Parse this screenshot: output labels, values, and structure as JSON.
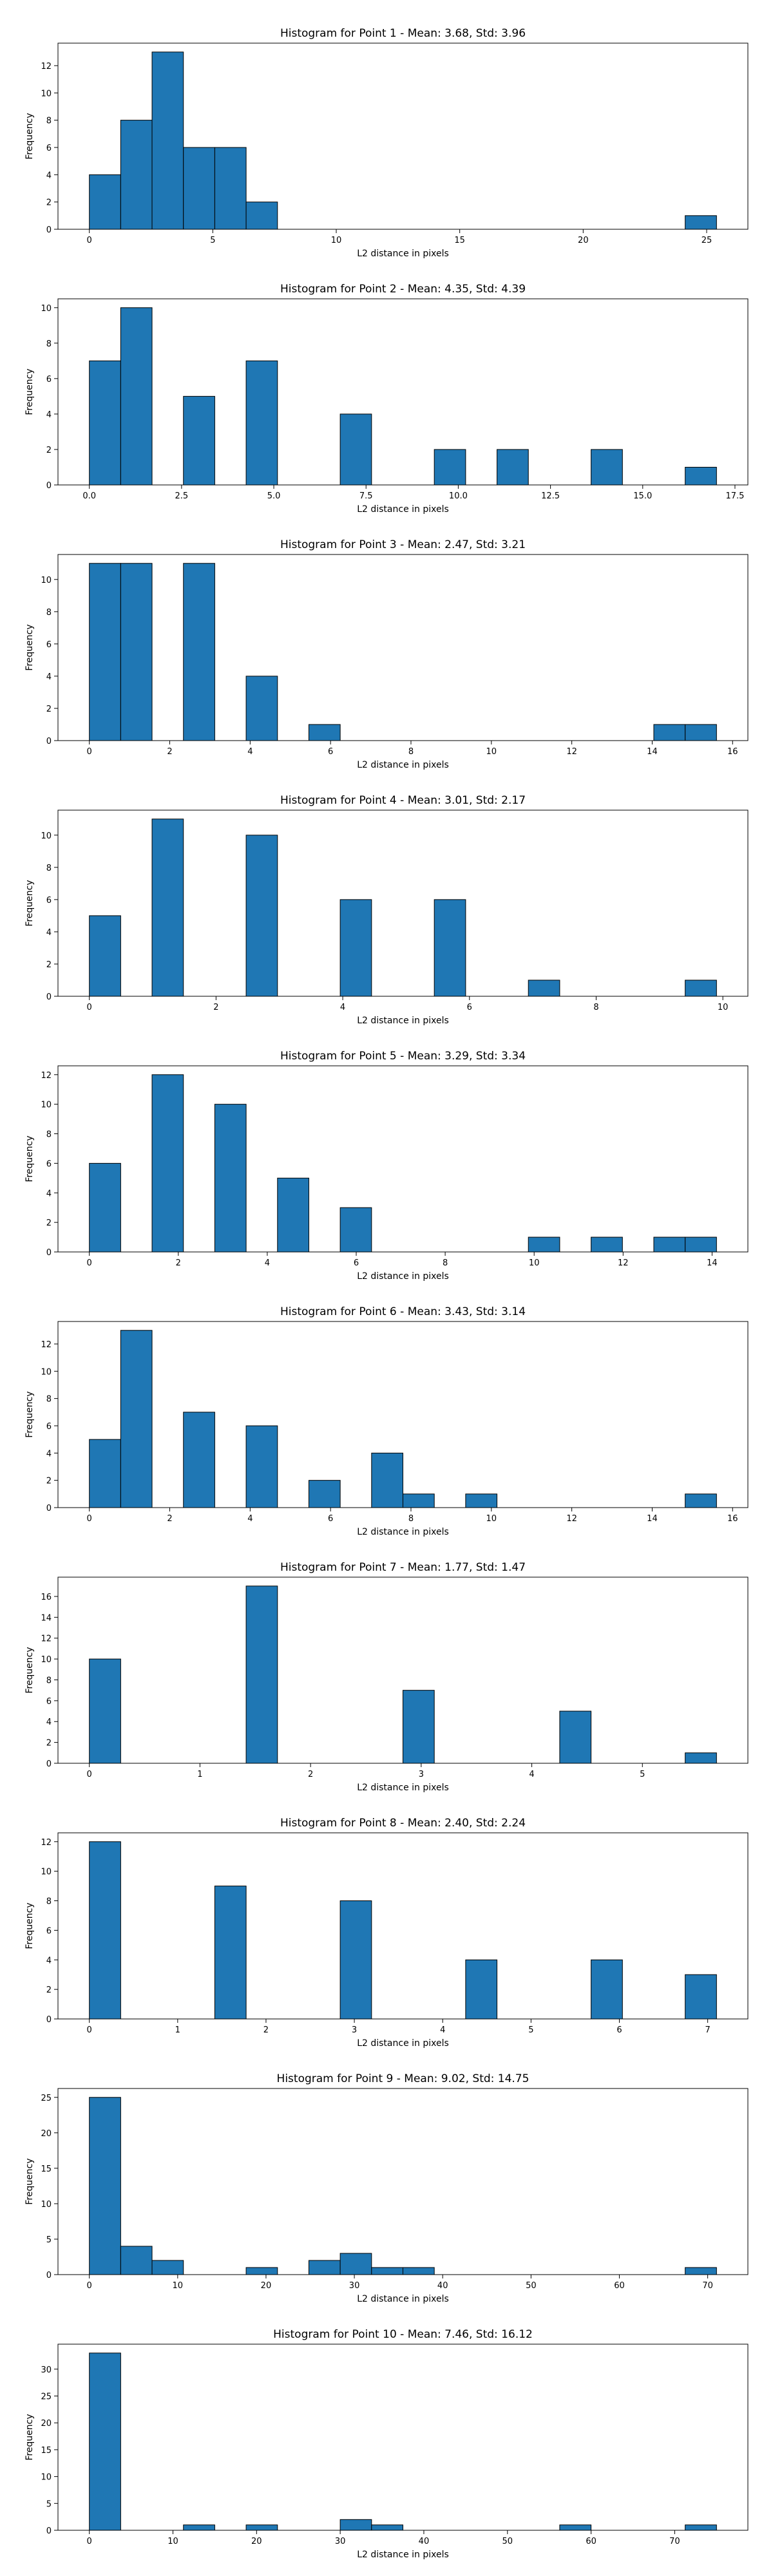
{
  "chart_data": [
    {
      "type": "histogram",
      "title": "Histogram for Point 1 - Mean: 3.68, Std: 3.96",
      "xlabel": "L2 distance in pixels",
      "ylabel": "Frequency",
      "color": "#1f77b4",
      "edgecolor": "#000000",
      "bins": [
        0,
        1.27,
        2.54,
        3.81,
        5.08,
        6.35,
        7.62,
        8.89,
        10.16,
        11.43,
        12.7,
        13.97,
        15.24,
        16.51,
        17.78,
        19.05,
        20.32,
        21.59,
        22.86,
        24.13,
        25.4
      ],
      "counts": [
        4,
        8,
        13,
        6,
        6,
        2,
        0,
        0,
        0,
        0,
        0,
        0,
        0,
        0,
        0,
        0,
        0,
        0,
        0,
        1
      ],
      "xlim": [
        -1.27,
        26.67
      ],
      "xticks": [
        0,
        5,
        10,
        15,
        20,
        25
      ],
      "ylim": [
        0,
        13.65
      ],
      "yticks": [
        0,
        2,
        4,
        6,
        8,
        10,
        12
      ]
    },
    {
      "type": "histogram",
      "title": "Histogram for Point 2 - Mean: 4.35, Std: 4.39",
      "xlabel": "L2 distance in pixels",
      "ylabel": "Frequency",
      "color": "#1f77b4",
      "edgecolor": "#000000",
      "bins": [
        0,
        0.85,
        1.7,
        2.55,
        3.4,
        4.25,
        5.1,
        5.95,
        6.8,
        7.65,
        8.5,
        9.35,
        10.2,
        11.05,
        11.9,
        12.75,
        13.6,
        14.45,
        15.3,
        16.15,
        17
      ],
      "counts": [
        7,
        10,
        0,
        5,
        0,
        7,
        0,
        0,
        4,
        0,
        0,
        2,
        0,
        2,
        0,
        0,
        2,
        0,
        0,
        1
      ],
      "xlim": [
        -0.85,
        17.85
      ],
      "xticks": [
        {
          "value": 0,
          "label": "0.0"
        },
        2.5,
        {
          "value": 5,
          "label": "5.0"
        },
        7.5,
        {
          "value": 10,
          "label": "10.0"
        },
        12.5,
        {
          "value": 15,
          "label": "15.0"
        },
        17.5
      ],
      "ylim": [
        0,
        10.5
      ],
      "yticks": [
        0,
        2,
        4,
        6,
        8,
        10
      ]
    },
    {
      "type": "histogram",
      "title": "Histogram for Point 3 - Mean: 2.47, Std: 3.21",
      "xlabel": "L2 distance in pixels",
      "ylabel": "Frequency",
      "color": "#1f77b4",
      "edgecolor": "#000000",
      "bins": [
        0,
        0.78,
        1.56,
        2.34,
        3.12,
        3.9,
        4.68,
        5.46,
        6.24,
        7.02,
        7.8,
        8.58,
        9.36,
        10.14,
        10.92,
        11.7,
        12.48,
        13.26,
        14.04,
        14.82,
        15.6
      ],
      "counts": [
        11,
        11,
        0,
        11,
        0,
        4,
        0,
        1,
        0,
        0,
        0,
        0,
        0,
        0,
        0,
        0,
        0,
        0,
        1,
        1
      ],
      "xlim": [
        -0.78,
        16.38
      ],
      "xticks": [
        0,
        2,
        4,
        6,
        8,
        10,
        12,
        14,
        16
      ],
      "ylim": [
        0,
        11.55
      ],
      "yticks": [
        0,
        2,
        4,
        6,
        8,
        10
      ]
    },
    {
      "type": "histogram",
      "title": "Histogram for Point 4 - Mean: 3.01, Std: 2.17",
      "xlabel": "L2 distance in pixels",
      "ylabel": "Frequency",
      "color": "#1f77b4",
      "edgecolor": "#000000",
      "bins": [
        0,
        0.495,
        0.99,
        1.485,
        1.98,
        2.475,
        2.97,
        3.465,
        3.96,
        4.455,
        4.95,
        5.445,
        5.94,
        6.435,
        6.93,
        7.425,
        7.92,
        8.415,
        8.91,
        9.405,
        9.9
      ],
      "counts": [
        5,
        0,
        11,
        0,
        0,
        10,
        0,
        0,
        6,
        0,
        0,
        6,
        0,
        0,
        1,
        0,
        0,
        0,
        0,
        1
      ],
      "xlim": [
        -0.495,
        10.395
      ],
      "xticks": [
        0,
        2,
        4,
        6,
        8,
        10
      ],
      "ylim": [
        0,
        11.55
      ],
      "yticks": [
        0,
        2,
        4,
        6,
        8,
        10
      ]
    },
    {
      "type": "histogram",
      "title": "Histogram for Point 5 - Mean: 3.29, Std: 3.34",
      "xlabel": "L2 distance in pixels",
      "ylabel": "Frequency",
      "color": "#1f77b4",
      "edgecolor": "#000000",
      "bins": [
        0,
        0.705,
        1.41,
        2.115,
        2.82,
        3.525,
        4.23,
        4.935,
        5.64,
        6.345,
        7.05,
        7.755,
        8.46,
        9.165,
        9.87,
        10.575,
        11.28,
        11.985,
        12.69,
        13.395,
        14.1
      ],
      "counts": [
        6,
        0,
        12,
        0,
        10,
        0,
        5,
        0,
        3,
        0,
        0,
        0,
        0,
        0,
        1,
        0,
        1,
        0,
        1,
        1
      ],
      "xlim": [
        -0.705,
        14.805
      ],
      "xticks": [
        0,
        2,
        4,
        6,
        8,
        10,
        12,
        14
      ],
      "ylim": [
        0,
        12.6
      ],
      "yticks": [
        0,
        2,
        4,
        6,
        8,
        10,
        12
      ]
    },
    {
      "type": "histogram",
      "title": "Histogram for Point 6 - Mean: 3.43, Std: 3.14",
      "xlabel": "L2 distance in pixels",
      "ylabel": "Frequency",
      "color": "#1f77b4",
      "edgecolor": "#000000",
      "bins": [
        0,
        0.78,
        1.56,
        2.34,
        3.12,
        3.9,
        4.68,
        5.46,
        6.24,
        7.02,
        7.8,
        8.58,
        9.36,
        10.14,
        10.92,
        11.7,
        12.48,
        13.26,
        14.04,
        14.82,
        15.6
      ],
      "counts": [
        5,
        13,
        0,
        7,
        0,
        6,
        0,
        2,
        0,
        4,
        1,
        0,
        1,
        0,
        0,
        0,
        0,
        0,
        0,
        1
      ],
      "xlim": [
        -0.78,
        16.38
      ],
      "xticks": [
        0,
        2,
        4,
        6,
        8,
        10,
        12,
        14,
        16
      ],
      "ylim": [
        0,
        13.65
      ],
      "yticks": [
        0,
        2,
        4,
        6,
        8,
        10,
        12
      ]
    },
    {
      "type": "histogram",
      "title": "Histogram for Point 7 - Mean: 1.77, Std: 1.47",
      "xlabel": "L2 distance in pixels",
      "ylabel": "Frequency",
      "color": "#1f77b4",
      "edgecolor": "#000000",
      "bins": [
        0,
        0.2835,
        0.567,
        0.8505,
        1.134,
        1.4175,
        1.701,
        1.9845,
        2.268,
        2.5515,
        2.835,
        3.1185,
        3.402,
        3.6855,
        3.969,
        4.2525,
        4.536,
        4.8195,
        5.103,
        5.3865,
        5.67
      ],
      "counts": [
        10,
        0,
        0,
        0,
        0,
        17,
        0,
        0,
        0,
        0,
        7,
        0,
        0,
        0,
        0,
        5,
        0,
        0,
        0,
        1
      ],
      "xlim": [
        -0.2835,
        5.9535
      ],
      "xticks": [
        0,
        1,
        2,
        3,
        4,
        5
      ],
      "ylim": [
        0,
        17.85
      ],
      "yticks": [
        0,
        2,
        4,
        6,
        8,
        10,
        12,
        14,
        16
      ]
    },
    {
      "type": "histogram",
      "title": "Histogram for Point 8 - Mean: 2.40, Std: 2.24",
      "xlabel": "L2 distance in pixels",
      "ylabel": "Frequency",
      "color": "#1f77b4",
      "edgecolor": "#000000",
      "bins": [
        0,
        0.355,
        0.71,
        1.065,
        1.42,
        1.775,
        2.13,
        2.485,
        2.84,
        3.195,
        3.55,
        3.905,
        4.26,
        4.615,
        4.97,
        5.325,
        5.68,
        6.035,
        6.39,
        6.745,
        7.1
      ],
      "counts": [
        12,
        0,
        0,
        0,
        9,
        0,
        0,
        0,
        8,
        0,
        0,
        0,
        4,
        0,
        0,
        0,
        4,
        0,
        0,
        3
      ],
      "xlim": [
        -0.355,
        7.455
      ],
      "xticks": [
        0,
        1,
        2,
        3,
        4,
        5,
        6,
        7
      ],
      "ylim": [
        0,
        12.6
      ],
      "yticks": [
        0,
        2,
        4,
        6,
        8,
        10,
        12
      ]
    },
    {
      "type": "histogram",
      "title": "Histogram for Point 9 - Mean: 9.02, Std: 14.75",
      "xlabel": "L2 distance in pixels",
      "ylabel": "Frequency",
      "color": "#1f77b4",
      "edgecolor": "#000000",
      "bins": [
        0,
        3.55,
        7.1,
        10.65,
        14.2,
        17.75,
        21.3,
        24.85,
        28.4,
        31.95,
        35.5,
        39.05,
        42.6,
        46.15,
        49.7,
        53.25,
        56.8,
        60.35,
        63.9,
        67.45,
        71
      ],
      "counts": [
        25,
        4,
        2,
        0,
        0,
        1,
        0,
        2,
        3,
        1,
        1,
        0,
        0,
        0,
        0,
        0,
        0,
        0,
        0,
        1
      ],
      "xlim": [
        -3.55,
        74.55
      ],
      "xticks": [
        0,
        10,
        20,
        30,
        40,
        50,
        60,
        70
      ],
      "ylim": [
        0,
        26.25
      ],
      "yticks": [
        0,
        5,
        10,
        15,
        20,
        25
      ]
    },
    {
      "type": "histogram",
      "title": "Histogram for Point 10 - Mean: 7.46, Std: 16.12",
      "xlabel": "L2 distance in pixels",
      "ylabel": "Frequency",
      "color": "#1f77b4",
      "edgecolor": "#000000",
      "bins": [
        0,
        3.75,
        7.5,
        11.25,
        15,
        18.75,
        22.5,
        26.25,
        30,
        33.75,
        37.5,
        41.25,
        45,
        48.75,
        52.5,
        56.25,
        60,
        63.75,
        67.5,
        71.25,
        75
      ],
      "counts": [
        33,
        0,
        0,
        1,
        0,
        1,
        0,
        0,
        2,
        1,
        0,
        0,
        0,
        0,
        0,
        1,
        0,
        0,
        0,
        1
      ],
      "xlim": [
        -3.75,
        78.75
      ],
      "xticks": [
        0,
        10,
        20,
        30,
        40,
        50,
        60,
        70
      ],
      "ylim": [
        0,
        34.65
      ],
      "yticks": [
        0,
        5,
        10,
        15,
        20,
        25,
        30
      ]
    }
  ]
}
